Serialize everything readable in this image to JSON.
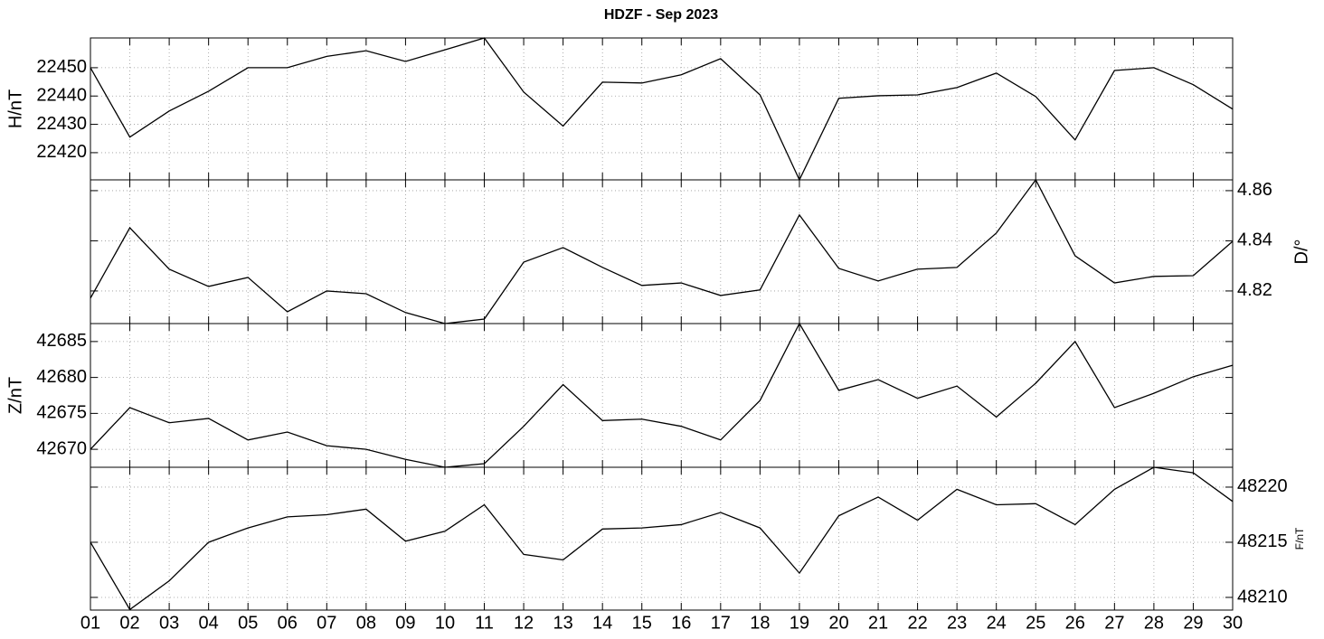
{
  "chart_data": [
    {
      "type": "line",
      "title": "HDZF - Sep 2023",
      "ylabel": "H/nT",
      "yaxis": "left",
      "grid": true,
      "color": "#000000",
      "ylim": [
        22410.4,
        22460.5
      ],
      "yticks": [
        22420,
        22430,
        22440,
        22450
      ],
      "values": [
        22450,
        22425.5,
        22434.7,
        22441.7,
        22450,
        22450,
        22454,
        22456,
        22452.2,
        22456.3,
        22460.5,
        22441.4,
        22429.4,
        22444.9,
        22444.6,
        22447.5,
        22453.2,
        22440.4,
        22410.4,
        22439.2,
        22440.1,
        22440.4,
        22443,
        22448.1,
        22439.8,
        22424.5,
        22449,
        22450,
        22444,
        22435.4
      ]
    },
    {
      "type": "line",
      "ylabel": "D/°",
      "yaxis": "right",
      "grid": true,
      "color": "#000000",
      "ylim": [
        4.807,
        4.8643
      ],
      "yticks": [
        4.82,
        4.84,
        4.86
      ],
      "values": [
        4.8171,
        4.8452,
        4.8287,
        4.8218,
        4.8254,
        4.8117,
        4.82,
        4.8189,
        4.8114,
        4.807,
        4.8088,
        4.8315,
        4.8373,
        4.8294,
        4.8222,
        4.8232,
        4.8182,
        4.8204,
        4.8503,
        4.829,
        4.824,
        4.8287,
        4.8294,
        4.8431,
        4.8643,
        4.834,
        4.8232,
        4.8258,
        4.8261,
        4.8398
      ]
    },
    {
      "type": "line",
      "ylabel": "Z/nT",
      "yaxis": "left",
      "grid": true,
      "color": "#000000",
      "ylim": [
        42667.5,
        42687.5
      ],
      "yticks": [
        42670,
        42675,
        42680,
        42685
      ],
      "values": [
        42670,
        42675.8,
        42673.7,
        42674.3,
        42671.3,
        42672.4,
        42670.5,
        42670,
        42668.6,
        42667.5,
        42668,
        42673.2,
        42679,
        42674,
        42674.2,
        42673.2,
        42671.3,
        42676.8,
        42687.5,
        42678.2,
        42679.7,
        42677.1,
        42678.8,
        42674.5,
        42679.2,
        42685,
        42675.8,
        42677.8,
        42680.1,
        42681.7
      ]
    },
    {
      "type": "line",
      "ylabel": "F/nT",
      "yaxis": "right",
      "grid": true,
      "color": "#000000",
      "ylim": [
        48208.85,
        48221.8
      ],
      "yticks": [
        48210,
        48215,
        48220
      ],
      "categories": [
        "01",
        "02",
        "03",
        "04",
        "05",
        "06",
        "07",
        "08",
        "09",
        "10",
        "11",
        "12",
        "13",
        "14",
        "15",
        "16",
        "17",
        "18",
        "19",
        "20",
        "21",
        "22",
        "23",
        "24",
        "25",
        "26",
        "27",
        "28",
        "29",
        "30"
      ],
      "values": [
        48215,
        48208.9,
        48211.5,
        48215,
        48216.3,
        48217.3,
        48217.5,
        48218,
        48215.1,
        48216,
        48218.4,
        48213.9,
        48213.4,
        48216.2,
        48216.3,
        48216.6,
        48217.7,
        48216.3,
        48212.2,
        48217.4,
        48219.1,
        48217,
        48219.8,
        48218.4,
        48218.5,
        48216.6,
        48219.8,
        48221.8,
        48221.3,
        48218.7
      ]
    }
  ]
}
